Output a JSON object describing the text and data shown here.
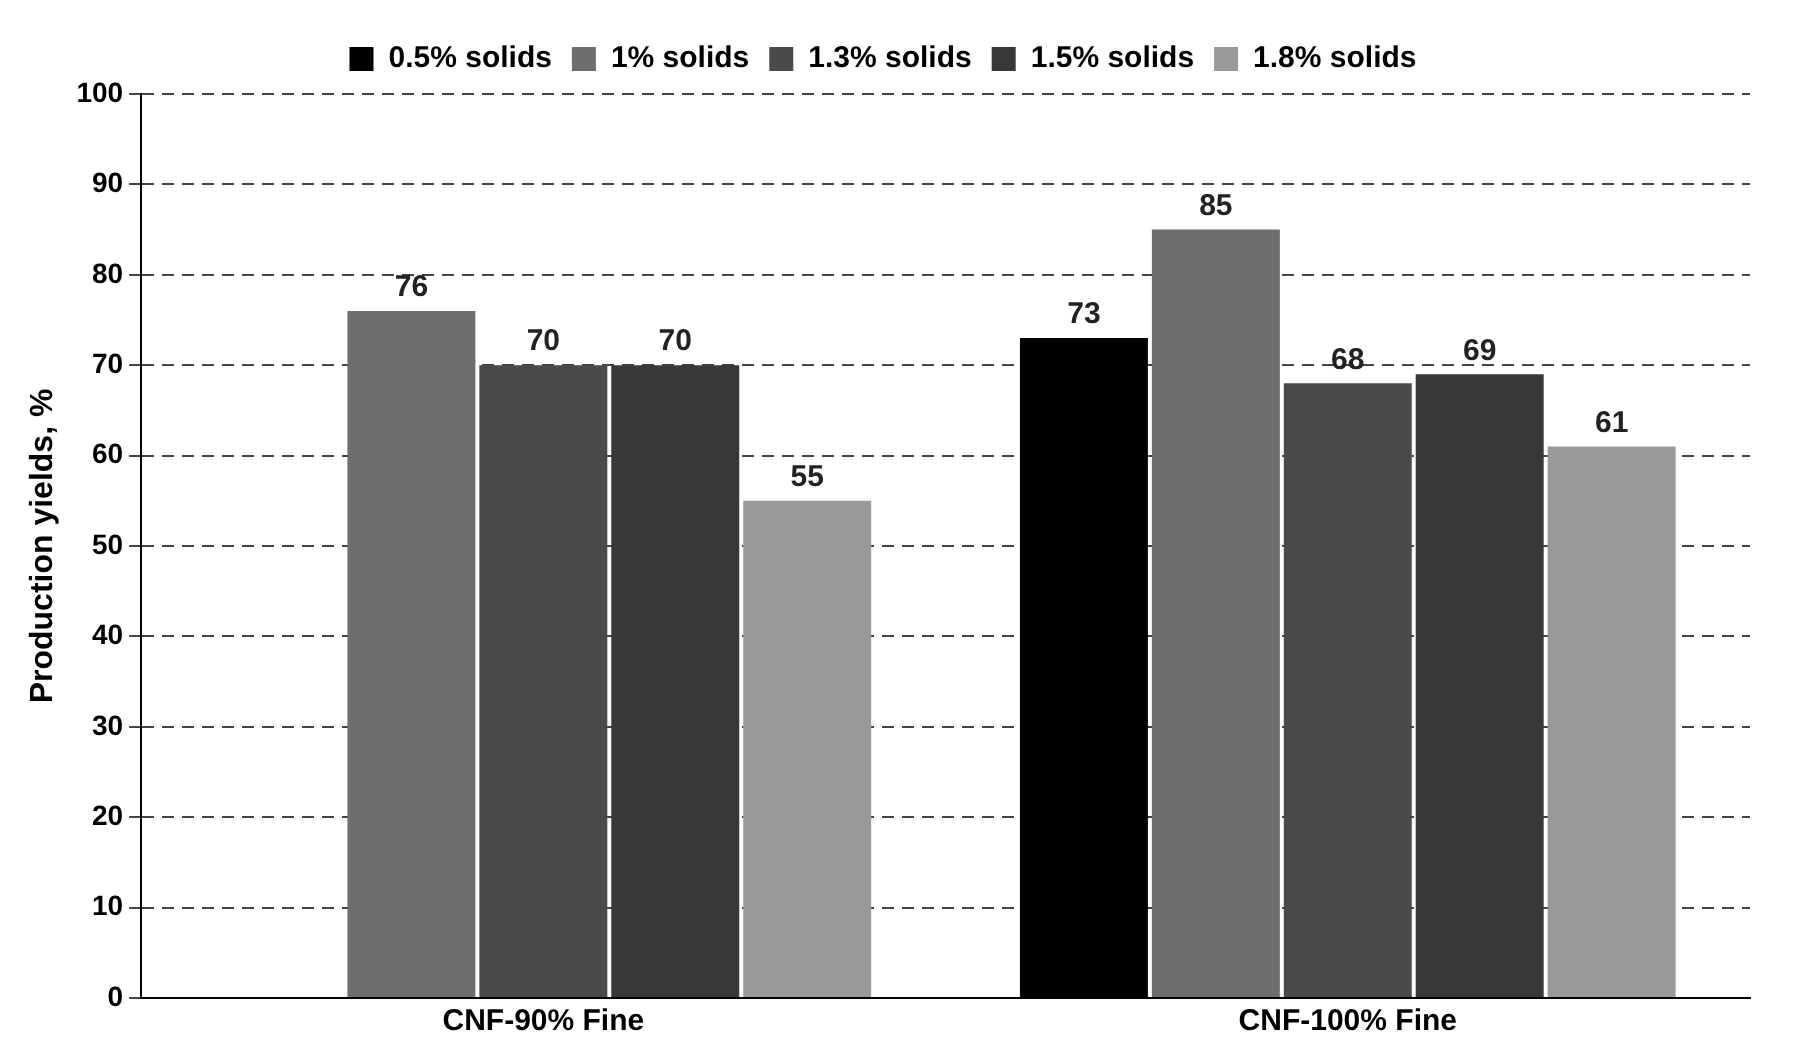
{
  "chart_data": {
    "type": "bar",
    "ylabel": "Production yields, %",
    "categories": [
      "CNF-90% Fine",
      "CNF-100% Fine"
    ],
    "series": [
      {
        "name": "0.5% solids",
        "color": "#000000",
        "values": [
          null,
          73
        ]
      },
      {
        "name": "1% solids",
        "color": "#6e6e6e",
        "values": [
          76,
          85
        ]
      },
      {
        "name": "1.3% solids",
        "color": "#4a4a4a",
        "values": [
          70,
          68
        ]
      },
      {
        "name": "1.5% solids",
        "color": "#383838",
        "values": [
          70,
          69
        ]
      },
      {
        "name": "1.8% solids",
        "color": "#9a9a9a",
        "values": [
          55,
          61
        ]
      }
    ],
    "ylim": [
      0,
      100
    ],
    "yticks": [
      0,
      10,
      20,
      30,
      40,
      50,
      60,
      70,
      80,
      90,
      100
    ],
    "grid": "y",
    "legend": "top",
    "data_labels": true
  }
}
